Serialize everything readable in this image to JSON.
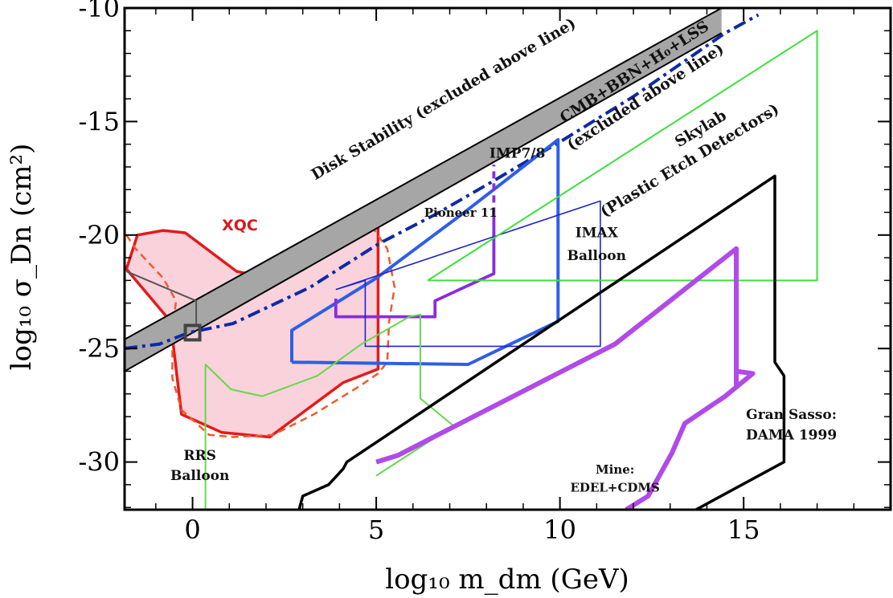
{
  "chart_data": {
    "type": "line",
    "title": "",
    "xlabel": "log₁₀ m_dm (GeV)",
    "ylabel": "log₁₀ σ_Dn (cm²)",
    "xlim": [
      -1.85,
      19.0
    ],
    "ylim": [
      -32.1,
      -10.0
    ],
    "x_ticks": [
      0,
      5,
      10,
      15
    ],
    "y_ticks": [
      -10,
      -15,
      -20,
      -25,
      -30
    ],
    "x_tick_labels": [
      "0",
      "5",
      "10",
      "15"
    ],
    "y_tick_labels": [
      "-10",
      "-15",
      "-20",
      "-25",
      "-30"
    ],
    "grid": false,
    "regions": [
      {
        "name": "XQC",
        "kind": "filled",
        "color": "#e31a1c",
        "fill": "#f9d2db",
        "width": 3.5,
        "points": [
          [
            -1.8,
            -21.5
          ],
          [
            -1.5,
            -20
          ],
          [
            -0.8,
            -19.8
          ],
          [
            -0.2,
            -19.9
          ],
          [
            1.2,
            -21.6
          ],
          [
            2.1,
            -21.9
          ],
          [
            3.2,
            -21.2
          ],
          [
            4.5,
            -20.1
          ],
          [
            5.05,
            -19.3
          ],
          [
            5.05,
            -25.9
          ],
          [
            4.1,
            -26.5
          ],
          [
            2.1,
            -28.9
          ],
          [
            0.8,
            -28.7
          ],
          [
            -0.3,
            -27.9
          ],
          [
            -0.6,
            -23.8
          ],
          [
            -1.8,
            -21.5
          ]
        ]
      },
      {
        "name": "XQC (dashed)",
        "kind": "dashed",
        "color": "#ef5a2a",
        "width": 2.5,
        "points": [
          [
            -1.8,
            -20
          ],
          [
            -1.55,
            -20.6
          ],
          [
            -0.8,
            -21.9
          ],
          [
            -0.45,
            -22.9
          ],
          [
            -0.55,
            -24.3
          ],
          [
            -0.55,
            -26.3
          ],
          [
            -0.3,
            -27.7
          ],
          [
            0.45,
            -28.8
          ],
          [
            1.1,
            -28.9
          ],
          [
            2.2,
            -28.8
          ],
          [
            3.3,
            -27.9
          ],
          [
            4.6,
            -26.6
          ],
          [
            5.05,
            -26.1
          ],
          [
            5.3,
            -25.6
          ],
          [
            5.35,
            -23.8
          ],
          [
            5.5,
            -22.3
          ],
          [
            5.3,
            -20.6
          ],
          [
            4.7,
            -19.2
          ],
          [
            4.2,
            -19.2
          ]
        ]
      },
      {
        "name": "Disk Stability (excluded above line)",
        "kind": "band",
        "color": "#a6a6a6",
        "outline": "#000000",
        "upper": [
          [
            -1.85,
            -24.6
          ],
          [
            14.4,
            -10.0
          ]
        ],
        "lower": [
          [
            -1.85,
            -26.0
          ],
          [
            14.4,
            -11.1
          ]
        ]
      },
      {
        "name": "CMB+BBN+H0+LSS (excluded above line)",
        "kind": "dashdot",
        "color": "#0f2aa6",
        "width": 4,
        "points": [
          [
            -1.85,
            -25.0
          ],
          [
            -0.9,
            -24.8
          ],
          [
            -0.1,
            -24.3
          ],
          [
            1.1,
            -23.9
          ],
          [
            3.2,
            -22.3
          ],
          [
            5.05,
            -20.4
          ],
          [
            6.6,
            -19.1
          ],
          [
            8.1,
            -17.7
          ],
          [
            10.1,
            -15.8
          ],
          [
            12.0,
            -13.9
          ],
          [
            14.5,
            -11.1
          ],
          [
            15.4,
            -10.3
          ]
        ]
      },
      {
        "name": "IMP7/8",
        "kind": "line",
        "color": "#2f5ee6",
        "width": 4,
        "points": [
          [
            2.7,
            -25.6
          ],
          [
            2.7,
            -24.2
          ],
          [
            5.0,
            -21.9
          ],
          [
            7.4,
            -19.0
          ],
          [
            9.95,
            -15.8
          ],
          [
            9.95,
            -23.8
          ],
          [
            7.5,
            -25.7
          ],
          [
            2.7,
            -25.6
          ]
        ]
      },
      {
        "name": "Pioneer 11",
        "kind": "line",
        "color": "#8a2be2",
        "width": 3.8,
        "points": [
          [
            3.9,
            -22.8
          ],
          [
            3.9,
            -23.6
          ],
          [
            6.6,
            -23.6
          ],
          [
            6.6,
            -22.9
          ],
          [
            8.2,
            -21.7
          ],
          [
            8.2,
            -19.1
          ]
        ]
      },
      {
        "name": "Pioneer 11 (dashed)",
        "kind": "dashed",
        "color": "#8a2be2",
        "width": 3.8,
        "points": [
          [
            8.2,
            -19.1
          ],
          [
            8.2,
            -16.9
          ]
        ]
      },
      {
        "name": "IMAX Balloon",
        "kind": "line",
        "color": "#2222cc",
        "width": 1.6,
        "points": [
          [
            3.9,
            -22.4
          ],
          [
            11.1,
            -18.5
          ],
          [
            11.1,
            -24.9
          ],
          [
            4.7,
            -24.9
          ],
          [
            4.7,
            -22.0
          ],
          [
            3.9,
            -22.4
          ]
        ]
      },
      {
        "name": "Skylab (Plastic Etch Detectors)",
        "kind": "line",
        "color": "#3de03d",
        "width": 2,
        "points": [
          [
            6.4,
            -22.0
          ],
          [
            17.0,
            -11.0
          ],
          [
            17.0,
            -22.0
          ],
          [
            6.4,
            -22.0
          ]
        ]
      },
      {
        "name": "RRS Balloon",
        "kind": "line",
        "color": "#66d94a",
        "width": 2,
        "points": [
          [
            0.35,
            -32.1
          ],
          [
            0.35,
            -25.7
          ],
          [
            1.05,
            -26.8
          ],
          [
            1.9,
            -27.1
          ],
          [
            3.4,
            -26.2
          ],
          [
            4.6,
            -24.8
          ],
          [
            5.9,
            -23.6
          ],
          [
            6.2,
            -23.5
          ],
          [
            6.2,
            -27.2
          ],
          [
            7.1,
            -28.4
          ],
          [
            5.0,
            -30.6
          ]
        ]
      },
      {
        "name": "Mine: EDEL+CDMS",
        "kind": "line",
        "color": "#b04ae8",
        "width": 6,
        "points": [
          [
            5.0,
            -30.0
          ],
          [
            5.6,
            -29.7
          ],
          [
            11.5,
            -24.8
          ],
          [
            14.8,
            -20.6
          ],
          [
            14.8,
            -26.6
          ],
          [
            14.8,
            -26.0
          ],
          [
            15.25,
            -26.1
          ],
          [
            14.5,
            -27.1
          ],
          [
            13.4,
            -28.3
          ],
          [
            13.05,
            -29.6
          ],
          [
            12.4,
            -31.5
          ],
          [
            11.8,
            -32.1
          ]
        ]
      },
      {
        "name": "Gran Sasso: DAMA 1999",
        "kind": "line",
        "color": "#000000",
        "width": 3.5,
        "points": [
          [
            2.9,
            -32.1
          ],
          [
            3.0,
            -31.5
          ],
          [
            3.7,
            -31.0
          ],
          [
            4.1,
            -30.3
          ],
          [
            4.2,
            -30.0
          ],
          [
            15.85,
            -17.4
          ],
          [
            15.85,
            -25.6
          ],
          [
            16.1,
            -26.2
          ],
          [
            16.1,
            -30.0
          ],
          [
            13.7,
            -32.1
          ]
        ]
      },
      {
        "name": "Gray line",
        "kind": "line",
        "color": "#555555",
        "width": 2,
        "points": [
          [
            -1.8,
            -21.6
          ],
          [
            0.1,
            -22.9
          ],
          [
            0.1,
            -24.0
          ]
        ]
      }
    ],
    "marker": {
      "name": "square-marker",
      "x": 0.0,
      "y": -24.3
    },
    "annotations": [
      {
        "id": "xqc",
        "text": "XQC",
        "x": 0.8,
        "y": -19.8
      },
      {
        "id": "disk",
        "text": "Disk Stability (excluded above line)",
        "x": 6.9,
        "y": -14.2
      },
      {
        "id": "cmb1",
        "text": "CMB+BBN+H₀+LSS",
        "x": 12.1,
        "y": -13.0
      },
      {
        "id": "cmb2",
        "text": "(excluded above line)",
        "x": 12.4,
        "y": -14.1
      },
      {
        "id": "skylab1",
        "text": "Skylab",
        "x": 13.9,
        "y": -15.5
      },
      {
        "id": "skylab2",
        "text": "(Plastic Etch Detectors)",
        "x": 13.6,
        "y": -16.9
      },
      {
        "id": "imp",
        "text": "IMP7/8",
        "x": 9.6,
        "y": -16.6
      },
      {
        "id": "pioneer",
        "text": "Pioneer 11",
        "x": 7.3,
        "y": -19.2
      },
      {
        "id": "imax1",
        "text": "IMAX",
        "x": 11.0,
        "y": -20.1
      },
      {
        "id": "imax2",
        "text": "Balloon",
        "x": 11.0,
        "y": -21.1
      },
      {
        "id": "rrs1",
        "text": "RRS",
        "x": 0.2,
        "y": -29.9
      },
      {
        "id": "rrs2",
        "text": "Balloon",
        "x": 0.2,
        "y": -30.8
      },
      {
        "id": "gran1",
        "text": "Gran Sasso:",
        "x": 16.3,
        "y": -28.1
      },
      {
        "id": "gran2",
        "text": "DAMA 1999",
        "x": 16.3,
        "y": -29.0
      },
      {
        "id": "mine1",
        "text": "Mine:",
        "x": 11.5,
        "y": -30.5
      },
      {
        "id": "mine2",
        "text": "EDEL+CDMS",
        "x": 11.5,
        "y": -31.3
      }
    ]
  }
}
